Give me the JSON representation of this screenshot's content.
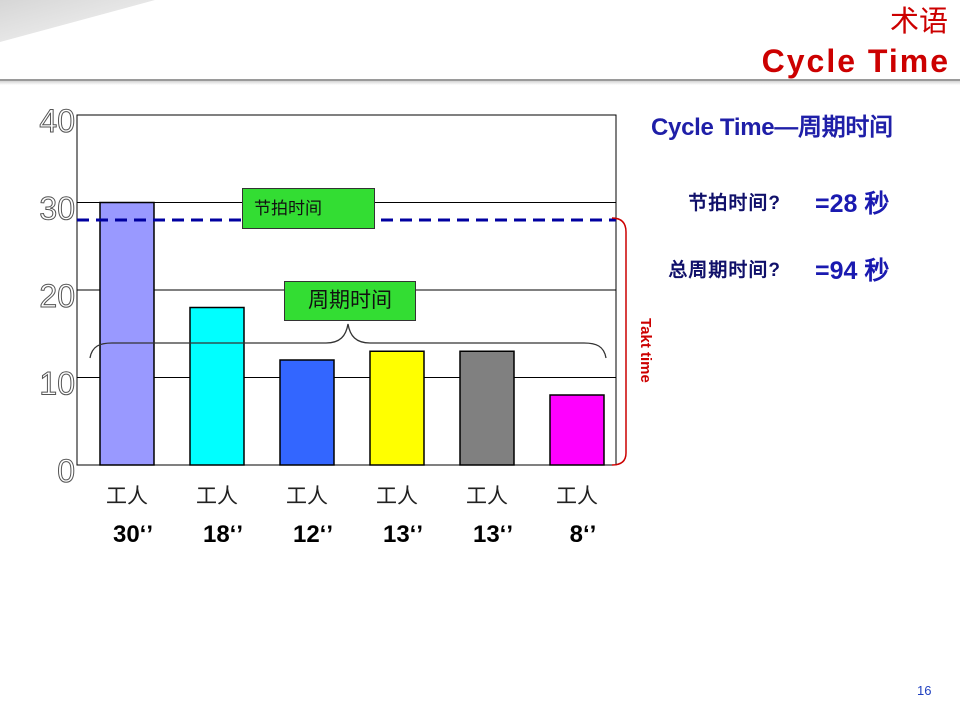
{
  "header": {
    "term_label": "术语",
    "title": "Cycle Time"
  },
  "side_panel": {
    "heading": "Cycle Time—周期时间",
    "rows": [
      {
        "label": "节拍时间?",
        "value": "=28 秒"
      },
      {
        "label": "总周期时间?",
        "value": "=94 秒"
      }
    ]
  },
  "chart_data": {
    "type": "bar",
    "categories": [
      "工人",
      "工人",
      "工人",
      "工人",
      "工人",
      "工人"
    ],
    "values": [
      30,
      18,
      12,
      13,
      13,
      8
    ],
    "value_labels": [
      "30‘’",
      "18‘’",
      "12‘’",
      "13‘’",
      "13‘’",
      "8‘’"
    ],
    "yticks": [
      0,
      10,
      20,
      30,
      40
    ],
    "ylim": [
      0,
      40
    ],
    "grid": true,
    "takt_time": 28,
    "takt_label": "节拍时间",
    "cycle_label": "周期时间",
    "takt_bracket_label": "Takt time",
    "bar_colors": [
      "#9999ff",
      "#00ffff",
      "#3366ff",
      "#ffff00",
      "#808080",
      "#ff00ff"
    ]
  },
  "colors": {
    "title": "#cc0000",
    "heading": "#1f1fa8",
    "row_label": "#10106a",
    "row_value": "#1a1ab0",
    "callout_fill": "#33dd33",
    "takt_line": "#0000a0",
    "takt_bracket": "#cc0000",
    "page_number": "#1f3fbf"
  },
  "page_number": "16"
}
